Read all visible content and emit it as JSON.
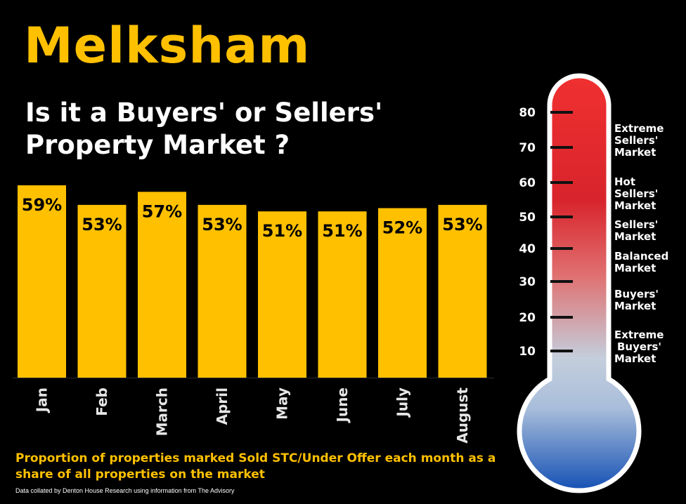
{
  "header": {
    "title": "Melksham",
    "subtitle_line1": "Is it a Buyers' or Sellers'",
    "subtitle_line2": "Property Market ?"
  },
  "footer": {
    "caption": "Proportion of properties marked Sold STC/Under Offer each month as a share of all properties on the market",
    "source": "Data collated by Denton House Research using information from The Advisory"
  },
  "colors": {
    "bar": "#FFC000",
    "title": "#FFC000",
    "background": "#000000",
    "thermometer_top": "#E8232A",
    "thermometer_mid": "#BFCFDF",
    "thermometer_bottom": "#1450B4"
  },
  "chart_data": {
    "type": "bar",
    "categories": [
      "Jan",
      "Feb",
      "March",
      "April",
      "May",
      "June",
      "July",
      "August"
    ],
    "values": [
      59,
      53,
      57,
      53,
      51,
      51,
      52,
      53
    ],
    "data_labels": [
      "59%",
      "53%",
      "57%",
      "53%",
      "51%",
      "51%",
      "52%",
      "53%"
    ],
    "ylim": [
      0,
      59
    ],
    "grid": false,
    "legend": "none"
  },
  "thermometer": {
    "ticks": [
      "80",
      "70",
      "60",
      "50",
      "40",
      "30",
      "20",
      "10"
    ],
    "zones": [
      {
        "line1": "Extreme",
        "line2": "Sellers'",
        "line3": "Market"
      },
      {
        "line1": "Hot",
        "line2": "Sellers'",
        "line3": "Market"
      },
      {
        "line1": "Sellers'",
        "line2": "Market",
        "line3": ""
      },
      {
        "line1": "Balanced",
        "line2": "Market",
        "line3": ""
      },
      {
        "line1": "Buyers'",
        "line2": "Market",
        "line3": ""
      },
      {
        "line1": "Extreme",
        "line2": "Buyers'",
        "line3": "Market"
      }
    ]
  }
}
